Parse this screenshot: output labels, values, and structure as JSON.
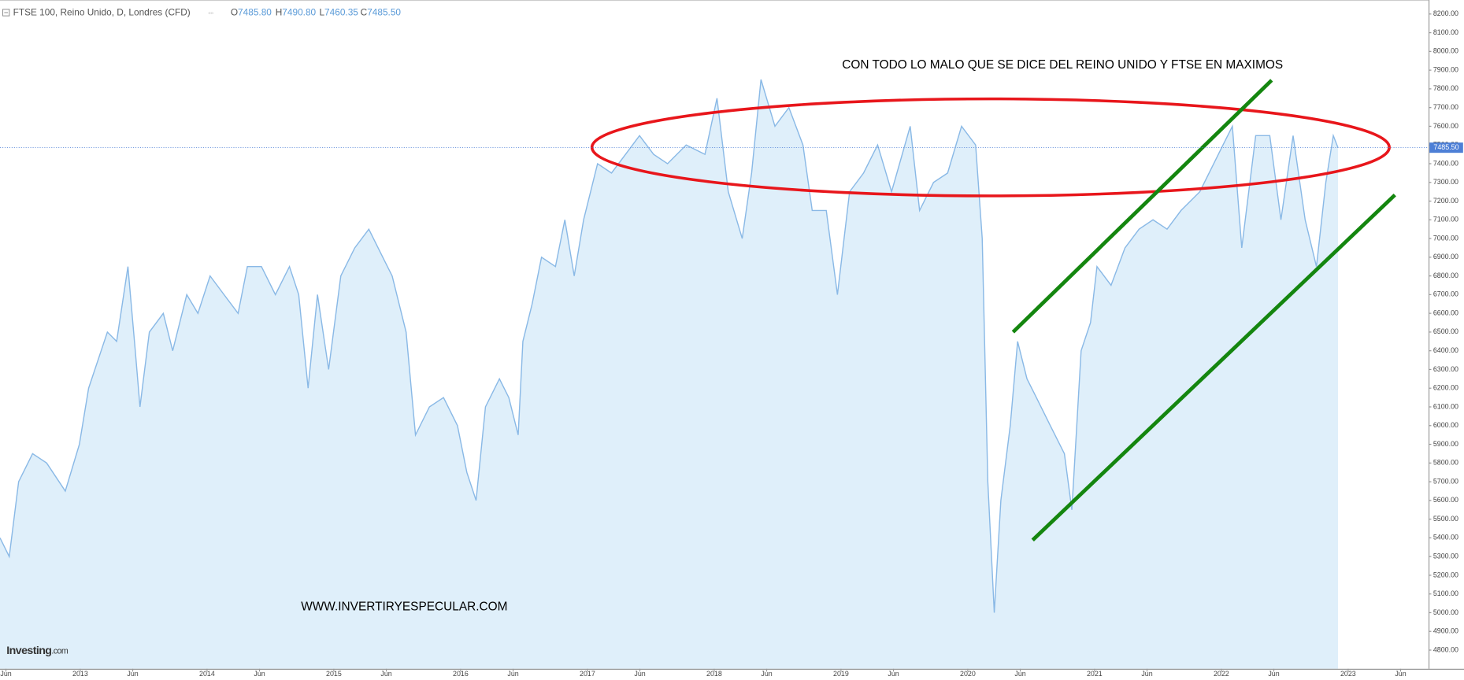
{
  "chart_data": {
    "type": "area",
    "title": "FTSE 100, Reino Unido, D, Londres (CFD)",
    "ohlc": {
      "o_label": "O",
      "o": "7485.80",
      "h_label": "H",
      "h": "7490.80",
      "l_label": "L",
      "l": "7460.35",
      "c_label": "C",
      "c": "7485.50"
    },
    "annotations": [
      "CON TODO LO MALO QUE SE DICE DEL REINO UNIDO Y FTSE EN MAXIMOS",
      "WWW.INVERTIRYESPECULAR.COM"
    ],
    "logo": {
      "brand": "Investing",
      "suffix": ".com"
    },
    "last_price": {
      "value": 7485.5,
      "label": "7485.50"
    },
    "last_price_color": "#4d7fd6",
    "line_color": "#8ab9e6",
    "fill_color": "#dfeffa",
    "x": [
      2012.367,
      2012.44,
      2012.514,
      2012.624,
      2012.735,
      2012.882,
      2012.993,
      2013.066,
      2013.14,
      2013.214,
      2013.287,
      2013.376,
      2013.434,
      2013.471,
      2013.545,
      2013.655,
      2013.729,
      2013.84,
      2013.928,
      2014.024,
      2014.134,
      2014.245,
      2014.318,
      2014.429,
      2014.539,
      2014.65,
      2014.723,
      2014.797,
      2014.871,
      2014.959,
      2015.055,
      2015.165,
      2015.276,
      2015.386,
      2015.46,
      2015.57,
      2015.644,
      2015.754,
      2015.865,
      2015.975,
      2016.049,
      2016.122,
      2016.196,
      2016.306,
      2016.38,
      2016.454,
      2016.491,
      2016.564,
      2016.638,
      2016.748,
      2016.822,
      2016.896,
      2016.97,
      2017.08,
      2017.19,
      2017.301,
      2017.411,
      2017.522,
      2017.632,
      2017.779,
      2017.927,
      2018.022,
      2018.111,
      2018.221,
      2018.295,
      2018.369,
      2018.479,
      2018.589,
      2018.7,
      2018.773,
      2018.884,
      2018.972,
      2019.068,
      2019.178,
      2019.289,
      2019.399,
      2019.546,
      2019.62,
      2019.73,
      2019.841,
      2019.951,
      2020.062,
      2020.114,
      2020.158,
      2020.209,
      2020.261,
      2020.335,
      2020.393,
      2020.467,
      2020.541,
      2020.651,
      2020.762,
      2020.821,
      2020.894,
      2020.968,
      2021.019,
      2021.13,
      2021.24,
      2021.351,
      2021.461,
      2021.572,
      2021.682,
      2021.83,
      2021.94,
      2022.013,
      2022.087,
      2022.161,
      2022.271,
      2022.382,
      2022.47,
      2022.566,
      2022.661,
      2022.75,
      2022.824,
      2022.883,
      2022.92
    ],
    "values": [
      5400,
      5300,
      5700,
      5850,
      5800,
      5650,
      5900,
      6200,
      6350,
      6500,
      6450,
      6850,
      6400,
      6100,
      6500,
      6600,
      6400,
      6700,
      6600,
      6800,
      6700,
      6600,
      6850,
      6850,
      6700,
      6850,
      6700,
      6200,
      6700,
      6300,
      6800,
      6950,
      7050,
      6900,
      6800,
      6500,
      5950,
      6100,
      6150,
      6000,
      5750,
      5600,
      6100,
      6250,
      6150,
      5950,
      6450,
      6650,
      6900,
      6850,
      7100,
      6800,
      7100,
      7400,
      7350,
      7450,
      7550,
      7450,
      7400,
      7500,
      7450,
      7750,
      7250,
      7000,
      7350,
      7850,
      7600,
      7700,
      7500,
      7150,
      7150,
      6700,
      7250,
      7350,
      7500,
      7250,
      7600,
      7150,
      7300,
      7350,
      7600,
      7500,
      7000,
      5700,
      5000,
      5600,
      6000,
      6450,
      6250,
      6150,
      6000,
      5850,
      5550,
      6400,
      6550,
      6850,
      6750,
      6950,
      7050,
      7100,
      7050,
      7150,
      7250,
      7400,
      7500,
      7600,
      6950,
      7550,
      7550,
      7100,
      7550,
      7100,
      6850,
      7300,
      7550,
      7485.5
    ],
    "xlim": [
      2012.367,
      2023.634
    ],
    "xticks": [
      {
        "value": 2012.414,
        "label": "Jun"
      },
      2013,
      {
        "value": 2013.414,
        "label": "Jun"
      },
      2014,
      {
        "value": 2014.414,
        "label": "Jun"
      },
      2015,
      {
        "value": 2015.414,
        "label": "Jun"
      },
      2016,
      {
        "value": 2016.414,
        "label": "Jun"
      },
      2017,
      {
        "value": 2017.414,
        "label": "Jun"
      },
      2018,
      {
        "value": 2018.414,
        "label": "Jun"
      },
      2019,
      {
        "value": 2019.414,
        "label": "Jun"
      },
      2020,
      {
        "value": 2020.414,
        "label": "Jun"
      },
      2021,
      {
        "value": 2021.414,
        "label": "Jun"
      },
      2022,
      {
        "value": 2022.414,
        "label": "Jun"
      },
      2023,
      {
        "value": 2023.414,
        "label": "Jun"
      }
    ],
    "ylim": [
      4700,
      8250
    ],
    "yticks": [
      {
        "value": 4800,
        "label": "4800.00"
      },
      {
        "value": 4900,
        "label": "4900.00"
      },
      {
        "value": 5000,
        "label": "5000.00"
      },
      {
        "value": 5100,
        "label": "5100.00"
      },
      {
        "value": 5200,
        "label": "5200.00"
      },
      {
        "value": 5300,
        "label": "5300.00"
      },
      {
        "value": 5400,
        "label": "5400.00"
      },
      {
        "value": 5500,
        "label": "5500.00"
      },
      {
        "value": 5600,
        "label": "5600.00"
      },
      {
        "value": 5700,
        "label": "5700.00"
      },
      {
        "value": 5800,
        "label": "5800.00"
      },
      {
        "value": 5900,
        "label": "5900.00"
      },
      {
        "value": 6000,
        "label": "6000.00"
      },
      {
        "value": 6100,
        "label": "6100.00"
      },
      {
        "value": 6200,
        "label": "6200.00"
      },
      {
        "value": 6300,
        "label": "6300.00"
      },
      {
        "value": 6400,
        "label": "6400.00"
      },
      {
        "value": 6500,
        "label": "6500.00"
      },
      {
        "value": 6600,
        "label": "6600.00"
      },
      {
        "value": 6700,
        "label": "6700.00"
      },
      {
        "value": 6800,
        "label": "6800.00"
      },
      {
        "value": 6900,
        "label": "6900.00"
      },
      {
        "value": 7000,
        "label": "7000.00"
      },
      {
        "value": 7100,
        "label": "7100.00"
      },
      {
        "value": 7200,
        "label": "7200.00"
      },
      {
        "value": 7300,
        "label": "7300.00"
      },
      {
        "value": 7400,
        "label": "7400.00"
      },
      {
        "value": 7500,
        "label": "7500.00"
      },
      {
        "value": 7600,
        "label": "7600.00"
      },
      {
        "value": 7700,
        "label": "7700.00"
      },
      {
        "value": 7800,
        "label": "7800.00"
      },
      {
        "value": 7900,
        "label": "7900.00"
      },
      {
        "value": 8000,
        "label": "8000.00"
      },
      {
        "value": 8100,
        "label": "8100.00"
      },
      {
        "value": 8200,
        "label": "8200.00"
      }
    ],
    "grid": false
  }
}
